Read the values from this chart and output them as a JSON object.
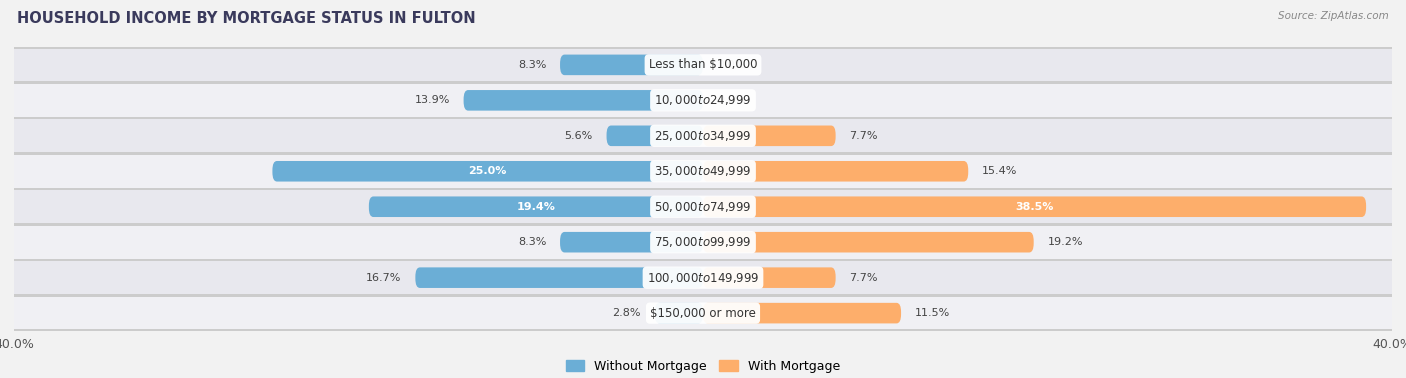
{
  "title": "HOUSEHOLD INCOME BY MORTGAGE STATUS IN FULTON",
  "source": "Source: ZipAtlas.com",
  "categories": [
    "Less than $10,000",
    "$10,000 to $24,999",
    "$25,000 to $34,999",
    "$35,000 to $49,999",
    "$50,000 to $74,999",
    "$75,000 to $99,999",
    "$100,000 to $149,999",
    "$150,000 or more"
  ],
  "without_mortgage": [
    8.3,
    13.9,
    5.6,
    25.0,
    19.4,
    8.3,
    16.7,
    2.8
  ],
  "with_mortgage": [
    0.0,
    0.0,
    7.7,
    15.4,
    38.5,
    19.2,
    7.7,
    11.5
  ],
  "without_mortgage_color": "#6baed6",
  "with_mortgage_color": "#fdae6b",
  "bar_height": 0.58,
  "xlim": [
    -40,
    40
  ],
  "background_color": "#f2f2f2",
  "row_colors": [
    "#e8e8ee",
    "#f0f0f4"
  ],
  "title_fontsize": 10.5,
  "label_fontsize": 8.0,
  "cat_fontsize": 8.5,
  "tick_fontsize": 9,
  "legend_fontsize": 9,
  "title_color": "#3a3a5c",
  "source_color": "#888888",
  "label_color_dark": "#444444",
  "label_color_white": "#ffffff"
}
